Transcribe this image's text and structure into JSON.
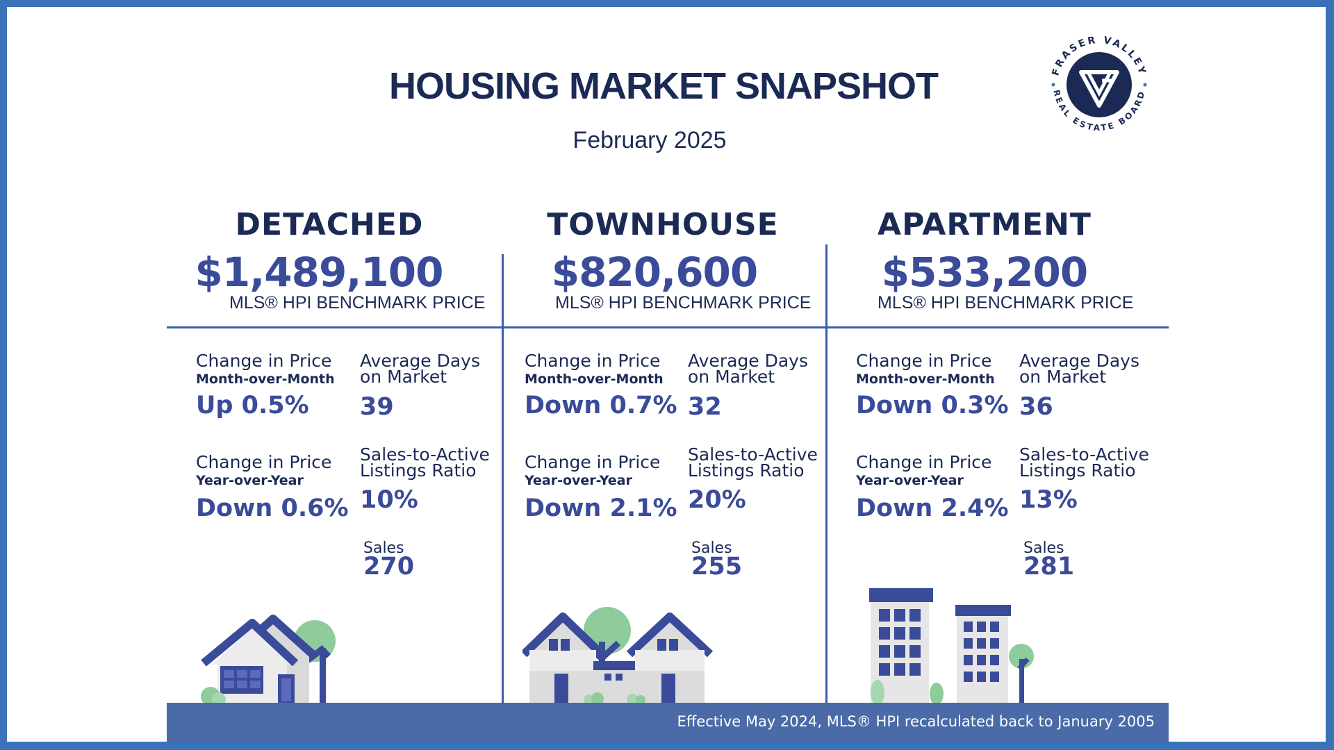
{
  "header": {
    "title": "HOUSING MARKET SNAPSHOT",
    "subtitle": "February 2025"
  },
  "logo": {
    "text_top": "FRASER VALLEY",
    "text_bottom": "REAL ESTATE BOARD",
    "icon": "fvreb-logo-icon"
  },
  "colors": {
    "navy": "#1b2a55",
    "accent_blue": "#3a4b99",
    "border_blue": "#3b71b8",
    "footer_blue": "#4a6aa8",
    "tree_green": "#8fcc9c"
  },
  "columns": [
    {
      "type": "DETACHED",
      "price": "$1,489,100",
      "price_label": "MLS® HPI BENCHMARK PRICE",
      "mom_label": "Change in Price",
      "mom_sub": "Month-over-Month",
      "mom_value": "Up 0.5%",
      "dom_label_1": "Average Days",
      "dom_label_2": "on Market",
      "dom_value": "39",
      "yoy_label": "Change in Price",
      "yoy_sub": "Year-over-Year",
      "yoy_value": "Down 0.6%",
      "ratio_label_1": "Sales-to-Active",
      "ratio_label_2": "Listings Ratio",
      "ratio_value": "10%",
      "sales_label": "Sales",
      "sales_value": "270"
    },
    {
      "type": "TOWNHOUSE",
      "price": "$820,600",
      "price_label": "MLS® HPI BENCHMARK PRICE",
      "mom_label": "Change in Price",
      "mom_sub": "Month-over-Month",
      "mom_value": "Down 0.7%",
      "dom_label_1": "Average Days",
      "dom_label_2": "on Market",
      "dom_value": "32",
      "yoy_label": "Change in Price",
      "yoy_sub": "Year-over-Year",
      "yoy_value": "Down 2.1%",
      "ratio_label_1": "Sales-to-Active",
      "ratio_label_2": "Listings Ratio",
      "ratio_value": "20%",
      "sales_label": "Sales",
      "sales_value": "255"
    },
    {
      "type": "APARTMENT",
      "price": "$533,200",
      "price_label": "MLS® HPI BENCHMARK PRICE",
      "mom_label": "Change in Price",
      "mom_sub": "Month-over-Month",
      "mom_value": "Down 0.3%",
      "dom_label_1": "Average Days",
      "dom_label_2": "on Market",
      "dom_value": "36",
      "yoy_label": "Change in Price",
      "yoy_sub": "Year-over-Year",
      "yoy_value": "Down 2.4%",
      "ratio_label_1": "Sales-to-Active",
      "ratio_label_2": "Listings Ratio",
      "ratio_value": "13%",
      "sales_label": "Sales",
      "sales_value": "281"
    }
  ],
  "footer": {
    "note": "Effective May 2024, MLS® HPI recalculated back to January 2005"
  }
}
